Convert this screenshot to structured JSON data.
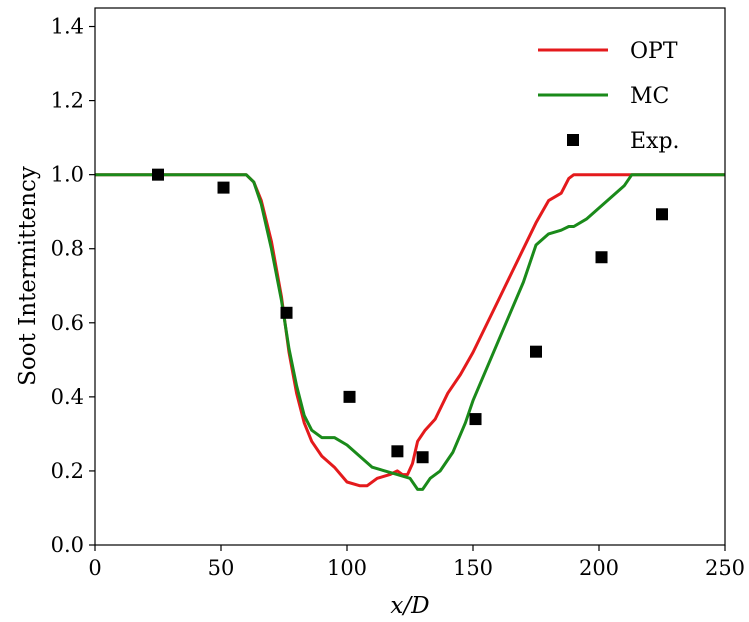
{
  "chart_data": {
    "type": "line",
    "title": "",
    "xlabel": "x/D",
    "ylabel": "Soot Intermittency",
    "xlim": [
      0,
      250
    ],
    "ylim": [
      0,
      1.45
    ],
    "xticks": [
      0,
      50,
      100,
      150,
      200,
      250
    ],
    "xtick_labels": [
      "0",
      "50",
      "100",
      "150",
      "200",
      "250"
    ],
    "yticks": [
      0.0,
      0.2,
      0.4,
      0.6,
      0.8,
      1.0,
      1.2,
      1.4
    ],
    "ytick_labels": [
      "0.0",
      "0.2",
      "0.4",
      "0.6",
      "0.8",
      "1.0",
      "1.2",
      "1.4"
    ],
    "grid": false,
    "legend_position": "top-right",
    "series": [
      {
        "name": "OPT",
        "kind": "line",
        "color": "#e41a1c",
        "x": [
          0,
          60,
          63,
          66,
          70,
          74,
          77,
          80,
          83,
          86,
          90,
          95,
          100,
          105,
          108,
          112,
          117,
          120,
          122,
          124,
          126,
          128,
          131,
          135,
          140,
          145,
          150,
          155,
          160,
          165,
          170,
          175,
          180,
          185,
          188,
          190,
          195,
          200,
          210,
          250
        ],
        "y": [
          1.0,
          1.0,
          0.98,
          0.93,
          0.82,
          0.67,
          0.52,
          0.41,
          0.33,
          0.28,
          0.24,
          0.21,
          0.17,
          0.16,
          0.16,
          0.18,
          0.19,
          0.2,
          0.19,
          0.19,
          0.22,
          0.28,
          0.31,
          0.34,
          0.41,
          0.46,
          0.52,
          0.59,
          0.66,
          0.73,
          0.8,
          0.87,
          0.93,
          0.95,
          0.99,
          1.0,
          1.0,
          1.0,
          1.0,
          1.0
        ]
      },
      {
        "name": "MC",
        "kind": "line",
        "color": "#1a8a1a",
        "x": [
          0,
          60,
          63,
          66,
          70,
          74,
          77,
          80,
          83,
          86,
          90,
          95,
          100,
          105,
          110,
          115,
          120,
          125,
          128,
          130,
          133,
          137,
          142,
          147,
          150,
          155,
          160,
          165,
          170,
          175,
          180,
          185,
          188,
          190,
          195,
          200,
          205,
          210,
          213,
          250
        ],
        "y": [
          1.0,
          1.0,
          0.98,
          0.92,
          0.8,
          0.66,
          0.53,
          0.43,
          0.35,
          0.31,
          0.29,
          0.29,
          0.27,
          0.24,
          0.21,
          0.2,
          0.19,
          0.18,
          0.15,
          0.15,
          0.18,
          0.2,
          0.25,
          0.33,
          0.39,
          0.47,
          0.55,
          0.63,
          0.71,
          0.81,
          0.84,
          0.85,
          0.86,
          0.86,
          0.88,
          0.91,
          0.94,
          0.97,
          1.0,
          1.0
        ]
      },
      {
        "name": "Exp.",
        "kind": "scatter",
        "color": "#000000",
        "x": [
          25,
          51,
          76,
          101,
          120,
          130,
          151,
          175,
          201,
          225
        ],
        "y": [
          1.0,
          0.965,
          0.627,
          0.4,
          0.253,
          0.237,
          0.34,
          0.522,
          0.777,
          0.893
        ]
      }
    ]
  }
}
